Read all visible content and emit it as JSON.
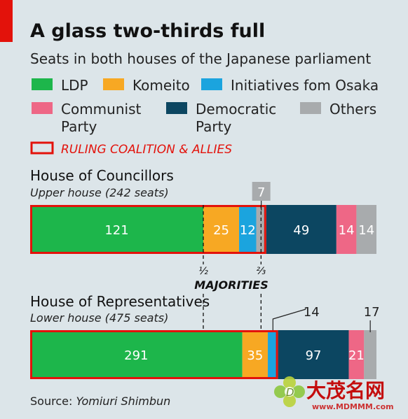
{
  "chart_data": {
    "type": "bar",
    "stacked": true,
    "orientation": "horizontal",
    "title": "A glass two-thirds full",
    "subtitle": "Seats in both houses of the Japanese parliament",
    "legend": [
      {
        "name": "LDP",
        "color": "#1db64b"
      },
      {
        "name": "Komeito",
        "color": "#f7a823"
      },
      {
        "name": "Initiatives fom Osaka",
        "color": "#1ba4de"
      },
      {
        "name": "Communist Party",
        "color": "#ee6786"
      },
      {
        "name": "Democratic Party",
        "color": "#0c4661"
      },
      {
        "name": "Others",
        "color": "#a8abad"
      }
    ],
    "coalition_label": "RULING COALITION & ALLIES",
    "coalition_color": "#e3120b",
    "houses": [
      {
        "name": "House of Councillors",
        "subtitle": "Upper house (242 seats)",
        "total": 242,
        "coalition_seats": 165,
        "segments": [
          {
            "party": "LDP",
            "seats": 121,
            "label": "121"
          },
          {
            "party": "Komeito",
            "seats": 25,
            "label": "25"
          },
          {
            "party": "Initiatives fom Osaka",
            "seats": 12,
            "label": "12"
          },
          {
            "party": "Others (allied)",
            "seats": 7,
            "label": "7",
            "color": "#a8abad",
            "callout": true
          },
          {
            "party": "Democratic Party",
            "seats": 49,
            "label": "49"
          },
          {
            "party": "Communist Party",
            "seats": 14,
            "label": "14"
          },
          {
            "party": "Others",
            "seats": 14,
            "label": "14"
          }
        ]
      },
      {
        "name": "House of Representatives",
        "subtitle": "Lower house (475 seats)",
        "total": 475,
        "coalition_seats": 340,
        "segments": [
          {
            "party": "LDP",
            "seats": 291,
            "label": "291"
          },
          {
            "party": "Komeito",
            "seats": 35,
            "label": "35"
          },
          {
            "party": "Initiatives fom Osaka",
            "seats": 14,
            "label": "14",
            "callout": true
          },
          {
            "party": "Democratic Party",
            "seats": 97,
            "label": "97"
          },
          {
            "party": "Communist Party",
            "seats": 21,
            "label": "21"
          },
          {
            "party": "Others",
            "seats": 17,
            "label": "17",
            "callout": true
          }
        ]
      }
    ],
    "majorities": {
      "label": "MAJORITIES",
      "lines": [
        {
          "fraction": 0.5,
          "label": "½"
        },
        {
          "fraction": 0.6667,
          "label": "⅔"
        }
      ]
    },
    "source_prefix": "Source: ",
    "source_name": "Yomiuri Shimbun"
  },
  "watermark": {
    "text": "大茂名网",
    "url": "www.MDMMM.com"
  },
  "colors": {
    "background": "#dce5e9",
    "accent_red": "#e3120b"
  }
}
